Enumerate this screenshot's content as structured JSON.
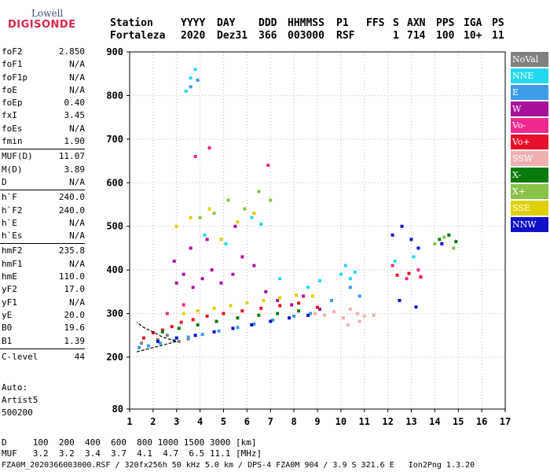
{
  "logo": {
    "line1": "Lowell",
    "line2": "DIGISONDE"
  },
  "header": {
    "station_label": "Station",
    "station_value": "Fortaleza",
    "yyyy_label": "YYYY",
    "yyyy_value": "2020",
    "day_label": "DAY",
    "day_value": "Dez31",
    "ddd_label": "DDD",
    "ddd_value": "366",
    "hhmmss_label": "HHMMSS",
    "hhmmss_value": "003000",
    "p1_label": "P1",
    "p1_value": "RSF",
    "ffs_label": "FFS",
    "ffs_value": "",
    "s_label": "S",
    "s_value": "1",
    "axn_label": "AXN",
    "axn_value": "714",
    "pps_label": "PPS",
    "pps_value": "100",
    "iga_label": "IGA",
    "iga_value": "10+",
    "ps_label": "PS",
    "ps_value": "11"
  },
  "params": [
    {
      "name": "foF2",
      "value": "2.850"
    },
    {
      "name": "foF1",
      "value": "N/A"
    },
    {
      "name": "foF1p",
      "value": "N/A"
    },
    {
      "name": "foE",
      "value": "N/A"
    },
    {
      "name": "foEp",
      "value": "0.40"
    },
    {
      "name": "fxI",
      "value": "3.45"
    },
    {
      "name": "foEs",
      "value": "N/A"
    },
    {
      "name": "fmin",
      "value": "1.90"
    },
    {
      "sep": true
    },
    {
      "name": "MUF(D)",
      "value": "11.07"
    },
    {
      "name": "M(D)",
      "value": "3.89"
    },
    {
      "name": "D",
      "value": "N/A"
    },
    {
      "sep": true
    },
    {
      "name": "h`F",
      "value": "240.0"
    },
    {
      "name": "h`F2",
      "value": "240.0"
    },
    {
      "name": "h`E",
      "value": "N/A"
    },
    {
      "name": "h`Es",
      "value": "N/A"
    },
    {
      "sep": true
    },
    {
      "name": "hmF2",
      "value": "235.8"
    },
    {
      "name": "hmF1",
      "value": "N/A"
    },
    {
      "name": "hmE",
      "value": "110.0"
    },
    {
      "name": "yF2",
      "value": "17.0"
    },
    {
      "name": "yF1",
      "value": "N/A"
    },
    {
      "name": "yE",
      "value": "20.0"
    },
    {
      "name": "B0",
      "value": "19.6"
    },
    {
      "name": "B1",
      "value": "1.39"
    },
    {
      "sep": true
    },
    {
      "name": "C-level",
      "value": "44"
    }
  ],
  "auto": {
    "line1": "Auto:",
    "line2": "Artist5",
    "line3": "500200"
  },
  "footer": {
    "d_row": "D     100  200  400  600  800 1000 1500 3000 [km]",
    "muf_row": "MUF   3.2  3.2  3.4  3.7  4.1  4.7  6.5 11.1 [MHz]",
    "file_row": "FZA0M_2020366003000.RSF / 320fx256h 50 kHz 5.0 km / DPS-4 FZA0M 904 / 3.9 S 321.6 E   Ion2Png 1.3.20"
  },
  "legend": [
    {
      "label": "NoVal",
      "color": "#808080"
    },
    {
      "label": "NNE",
      "color": "#22d8f0"
    },
    {
      "label": "E",
      "color": "#3c9be8"
    },
    {
      "label": "W",
      "color": "#a8129a"
    },
    {
      "label": "Vo-",
      "color": "#f02890"
    },
    {
      "label": "Vo+",
      "color": "#e8102a"
    },
    {
      "label": "SSW",
      "color": "#f0b0b0"
    },
    {
      "label": "X-",
      "color": "#0a7a0a"
    },
    {
      "label": "X+",
      "color": "#8ac24a"
    },
    {
      "label": "SSE",
      "color": "#e0d000"
    },
    {
      "label": "NNW",
      "color": "#1010c8"
    }
  ],
  "chart_data": {
    "type": "scatter",
    "title": "",
    "xlabel": "",
    "ylabel": "",
    "xlim": [
      1,
      17
    ],
    "ylim": [
      80,
      900
    ],
    "x_ticks": [
      1,
      2,
      3,
      4,
      5,
      6,
      7,
      8,
      9,
      10,
      11,
      12,
      13,
      14,
      15,
      16,
      17
    ],
    "y_ticks": [
      80,
      200,
      300,
      400,
      500,
      600,
      700,
      800,
      900
    ],
    "grid": true,
    "legend_position": "right",
    "series": [
      {
        "name": "NoVal",
        "points": [
          [
            1.5,
            232
          ],
          [
            2.2,
            240
          ],
          [
            2.6,
            250
          ],
          [
            3.1,
            236
          ],
          [
            3.5,
            242
          ]
        ]
      },
      {
        "name": "NNE",
        "points": [
          [
            3.4,
            810
          ],
          [
            3.6,
            840
          ],
          [
            3.8,
            860
          ],
          [
            4.2,
            480
          ],
          [
            5.1,
            460
          ],
          [
            6.2,
            520
          ],
          [
            6.6,
            505
          ],
          [
            7.4,
            380
          ],
          [
            8.6,
            360
          ],
          [
            9.1,
            375
          ],
          [
            10.0,
            390
          ],
          [
            10.2,
            410
          ],
          [
            10.4,
            380
          ],
          [
            10.6,
            395
          ],
          [
            12.3,
            420
          ],
          [
            13.1,
            430
          ]
        ]
      },
      {
        "name": "E",
        "points": [
          [
            1.4,
            222
          ],
          [
            1.8,
            226
          ],
          [
            2.3,
            232
          ],
          [
            2.9,
            238
          ],
          [
            3.5,
            246
          ],
          [
            4.1,
            252
          ],
          [
            4.8,
            260
          ],
          [
            5.6,
            268
          ],
          [
            6.3,
            276
          ],
          [
            7.1,
            285
          ],
          [
            8.0,
            294
          ],
          [
            8.7,
            300
          ],
          [
            3.6,
            820
          ],
          [
            3.9,
            835
          ],
          [
            9.6,
            330
          ],
          [
            10.4,
            360
          ],
          [
            10.8,
            340
          ]
        ]
      },
      {
        "name": "W",
        "points": [
          [
            3.0,
            370
          ],
          [
            3.3,
            390
          ],
          [
            3.7,
            360
          ],
          [
            4.1,
            380
          ],
          [
            4.5,
            400
          ],
          [
            4.9,
            370
          ],
          [
            5.4,
            390
          ],
          [
            5.8,
            430
          ],
          [
            6.3,
            410
          ],
          [
            6.8,
            350
          ],
          [
            7.3,
            330
          ],
          [
            2.9,
            420
          ],
          [
            3.6,
            450
          ],
          [
            4.3,
            470
          ],
          [
            5.5,
            500
          ],
          [
            7.9,
            320
          ],
          [
            8.4,
            340
          ],
          [
            9.1,
            310
          ]
        ]
      },
      {
        "name": "Vo-",
        "points": [
          [
            3.8,
            660
          ],
          [
            4.4,
            680
          ],
          [
            6.9,
            640
          ],
          [
            2.6,
            300
          ],
          [
            3.3,
            320
          ],
          [
            12.2,
            410
          ],
          [
            12.8,
            380
          ],
          [
            13.3,
            400
          ]
        ]
      },
      {
        "name": "Vo+",
        "points": [
          [
            1.6,
            244
          ],
          [
            2.0,
            256
          ],
          [
            2.4,
            262
          ],
          [
            2.8,
            270
          ],
          [
            3.2,
            280
          ],
          [
            3.7,
            286
          ],
          [
            4.3,
            294
          ],
          [
            5.0,
            300
          ],
          [
            5.8,
            306
          ],
          [
            6.6,
            312
          ],
          [
            7.4,
            318
          ],
          [
            8.2,
            324
          ],
          [
            9.0,
            314
          ],
          [
            12.4,
            388
          ],
          [
            12.9,
            392
          ],
          [
            13.4,
            384
          ]
        ]
      },
      {
        "name": "SSW",
        "points": [
          [
            8.9,
            300
          ],
          [
            9.3,
            296
          ],
          [
            9.7,
            304
          ],
          [
            10.1,
            290
          ],
          [
            10.4,
            310
          ],
          [
            10.7,
            300
          ],
          [
            11.0,
            294
          ],
          [
            11.4,
            296
          ],
          [
            10.3,
            274
          ],
          [
            10.8,
            282
          ]
        ]
      },
      {
        "name": "X-",
        "points": [
          [
            2.4,
            258
          ],
          [
            3.1,
            266
          ],
          [
            3.9,
            274
          ],
          [
            4.7,
            282
          ],
          [
            5.6,
            290
          ],
          [
            6.5,
            296
          ],
          [
            7.3,
            300
          ],
          [
            8.2,
            306
          ],
          [
            14.2,
            470
          ],
          [
            14.6,
            480
          ],
          [
            14.9,
            465
          ]
        ]
      },
      {
        "name": "X+",
        "points": [
          [
            4.0,
            520
          ],
          [
            4.6,
            530
          ],
          [
            5.2,
            560
          ],
          [
            5.9,
            540
          ],
          [
            6.5,
            580
          ],
          [
            7.0,
            560
          ],
          [
            14.0,
            460
          ],
          [
            14.4,
            475
          ],
          [
            14.8,
            450
          ]
        ]
      },
      {
        "name": "SSE",
        "points": [
          [
            3.3,
            300
          ],
          [
            3.9,
            306
          ],
          [
            4.6,
            312
          ],
          [
            5.3,
            318
          ],
          [
            6.0,
            324
          ],
          [
            6.7,
            330
          ],
          [
            7.4,
            336
          ],
          [
            8.1,
            342
          ],
          [
            8.8,
            340
          ],
          [
            3.6,
            520
          ],
          [
            4.4,
            540
          ],
          [
            5.6,
            510
          ],
          [
            6.3,
            530
          ],
          [
            3.0,
            500
          ],
          [
            4.9,
            470
          ]
        ]
      },
      {
        "name": "NNW",
        "points": [
          [
            2.2,
            236
          ],
          [
            3.0,
            244
          ],
          [
            3.8,
            250
          ],
          [
            4.6,
            258
          ],
          [
            5.4,
            266
          ],
          [
            6.2,
            274
          ],
          [
            7.0,
            282
          ],
          [
            7.8,
            290
          ],
          [
            8.6,
            296
          ],
          [
            12.2,
            480
          ],
          [
            12.6,
            500
          ],
          [
            13.0,
            470
          ],
          [
            13.3,
            450
          ],
          [
            12.5,
            330
          ],
          [
            13.2,
            315
          ],
          [
            14.3,
            460
          ]
        ]
      }
    ],
    "trace": [
      [
        1.3,
        212
      ],
      [
        2.0,
        222
      ],
      [
        3.0,
        236
      ],
      [
        2.4,
        246
      ],
      [
        2.0,
        258
      ],
      [
        1.6,
        268
      ],
      [
        1.3,
        280
      ]
    ]
  }
}
